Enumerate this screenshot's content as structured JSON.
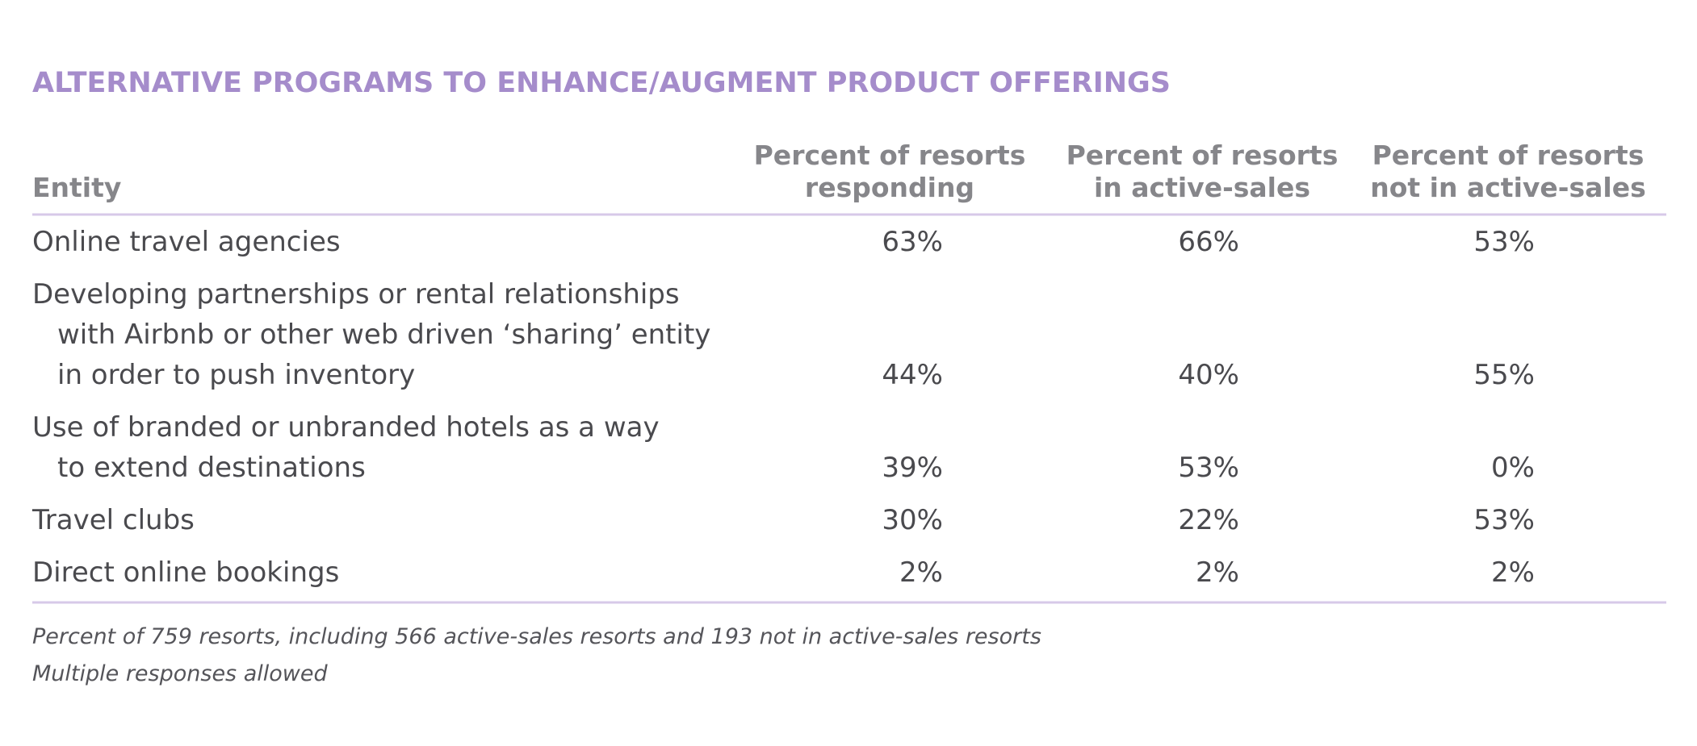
{
  "title": "ALTERNATIVE PROGRAMS TO ENHANCE/AUGMENT PRODUCT OFFERINGS",
  "table": {
    "header": [
      [
        "Entity"
      ],
      [
        "Percent of resorts",
        "responding"
      ],
      [
        "Percent of resorts",
        "in active-sales"
      ],
      [
        "Percent of resorts",
        "not in active-sales"
      ]
    ],
    "rows": [
      {
        "entity": [
          "Online travel agencies"
        ],
        "values": [
          "63%",
          "66%",
          "53%"
        ]
      },
      {
        "entity": [
          "Developing partnerships or rental relationships",
          "with Airbnb or other web driven ‘sharing’ entity",
          "in order to push inventory"
        ],
        "values": [
          "44%",
          "40%",
          "55%"
        ]
      },
      {
        "entity": [
          "Use of branded or unbranded hotels as a way",
          "to extend destinations"
        ],
        "values": [
          "39%",
          "53%",
          "0%"
        ]
      },
      {
        "entity": [
          "Travel clubs"
        ],
        "values": [
          "30%",
          "22%",
          "53%"
        ]
      },
      {
        "entity": [
          "Direct online bookings"
        ],
        "values": [
          "2%",
          "2%",
          "2%"
        ]
      }
    ]
  },
  "notes": [
    "Percent of 759 resorts, including 566 active-sales resorts and 193 not in active-sales resorts",
    "Multiple responses allowed"
  ]
}
